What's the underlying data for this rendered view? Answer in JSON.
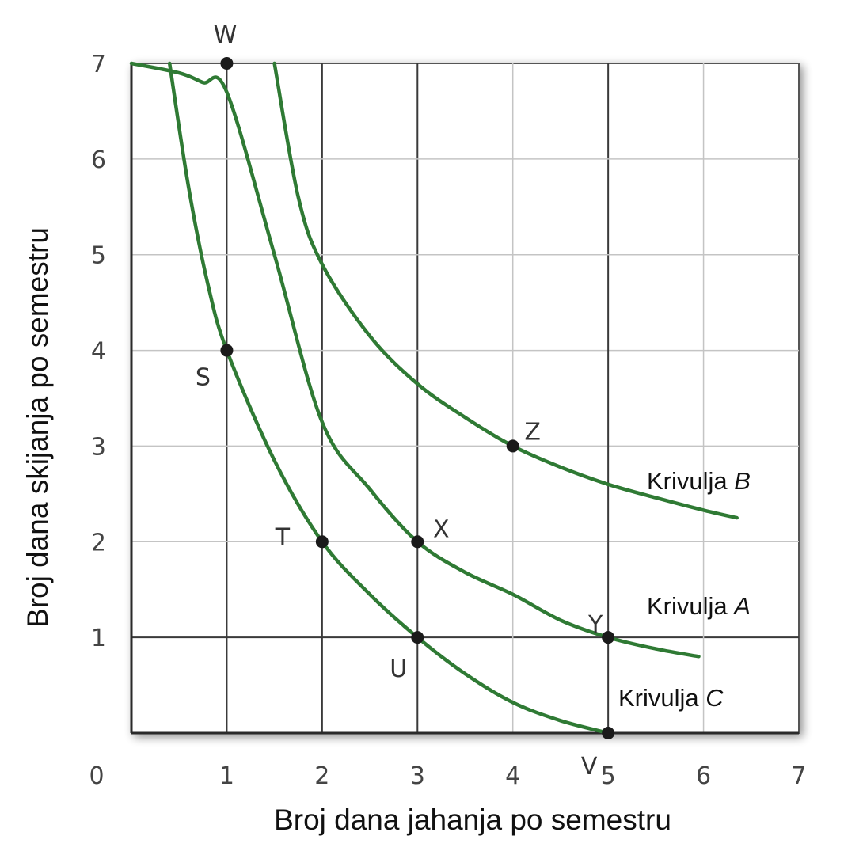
{
  "chart_data": {
    "type": "line",
    "xlabel": "Broj dana jahanja po semestru",
    "ylabel": "Broj dana skijanja po semestru",
    "xlim": [
      0,
      7
    ],
    "ylim": [
      0,
      7
    ],
    "x_ticks": [
      "0",
      "1",
      "2",
      "3",
      "4",
      "5",
      "6",
      "7"
    ],
    "y_ticks": [
      "1",
      "2",
      "3",
      "4",
      "5",
      "6",
      "7"
    ],
    "grid": true,
    "series": [
      {
        "name": "Krivulja A",
        "label_prefix": "Krivulja ",
        "label_italic": "A",
        "color": "#2f7a34",
        "x": [
          0.0,
          0.5,
          0.75,
          1.0,
          1.5,
          2.0,
          2.5,
          3.0,
          3.5,
          4.0,
          4.5,
          5.0,
          5.5,
          5.95
        ],
        "y": [
          7.0,
          6.9,
          6.8,
          6.7,
          5.0,
          3.25,
          2.55,
          2.0,
          1.68,
          1.45,
          1.18,
          1.0,
          0.88,
          0.8
        ]
      },
      {
        "name": "Krivulja B",
        "label_prefix": "Krivulja ",
        "label_italic": "B",
        "color": "#2f7a34",
        "x": [
          1.5,
          1.75,
          2.0,
          2.5,
          3.0,
          3.5,
          4.0,
          4.5,
          5.0,
          5.5,
          6.0,
          6.35
        ],
        "y": [
          7.0,
          5.6,
          4.9,
          4.15,
          3.65,
          3.3,
          3.0,
          2.78,
          2.6,
          2.46,
          2.33,
          2.25
        ]
      },
      {
        "name": "Krivulja C",
        "label_prefix": "Krivulja ",
        "label_italic": "C",
        "color": "#2f7a34",
        "x": [
          0.4,
          0.6,
          0.8,
          1.0,
          1.5,
          2.0,
          2.5,
          3.0,
          3.5,
          4.0,
          4.5,
          5.0
        ],
        "y": [
          7.0,
          5.7,
          4.7,
          4.0,
          2.85,
          2.0,
          1.45,
          1.0,
          0.62,
          0.32,
          0.13,
          0.0
        ]
      }
    ],
    "points": [
      {
        "label": "W",
        "x": 1,
        "y": 7
      },
      {
        "label": "S",
        "x": 1,
        "y": 4
      },
      {
        "label": "T",
        "x": 2,
        "y": 2
      },
      {
        "label": "U",
        "x": 3,
        "y": 1
      },
      {
        "label": "V",
        "x": 5,
        "y": 0
      },
      {
        "label": "X",
        "x": 3,
        "y": 2
      },
      {
        "label": "Y",
        "x": 5,
        "y": 1
      },
      {
        "label": "Z",
        "x": 4,
        "y": 3
      }
    ]
  }
}
